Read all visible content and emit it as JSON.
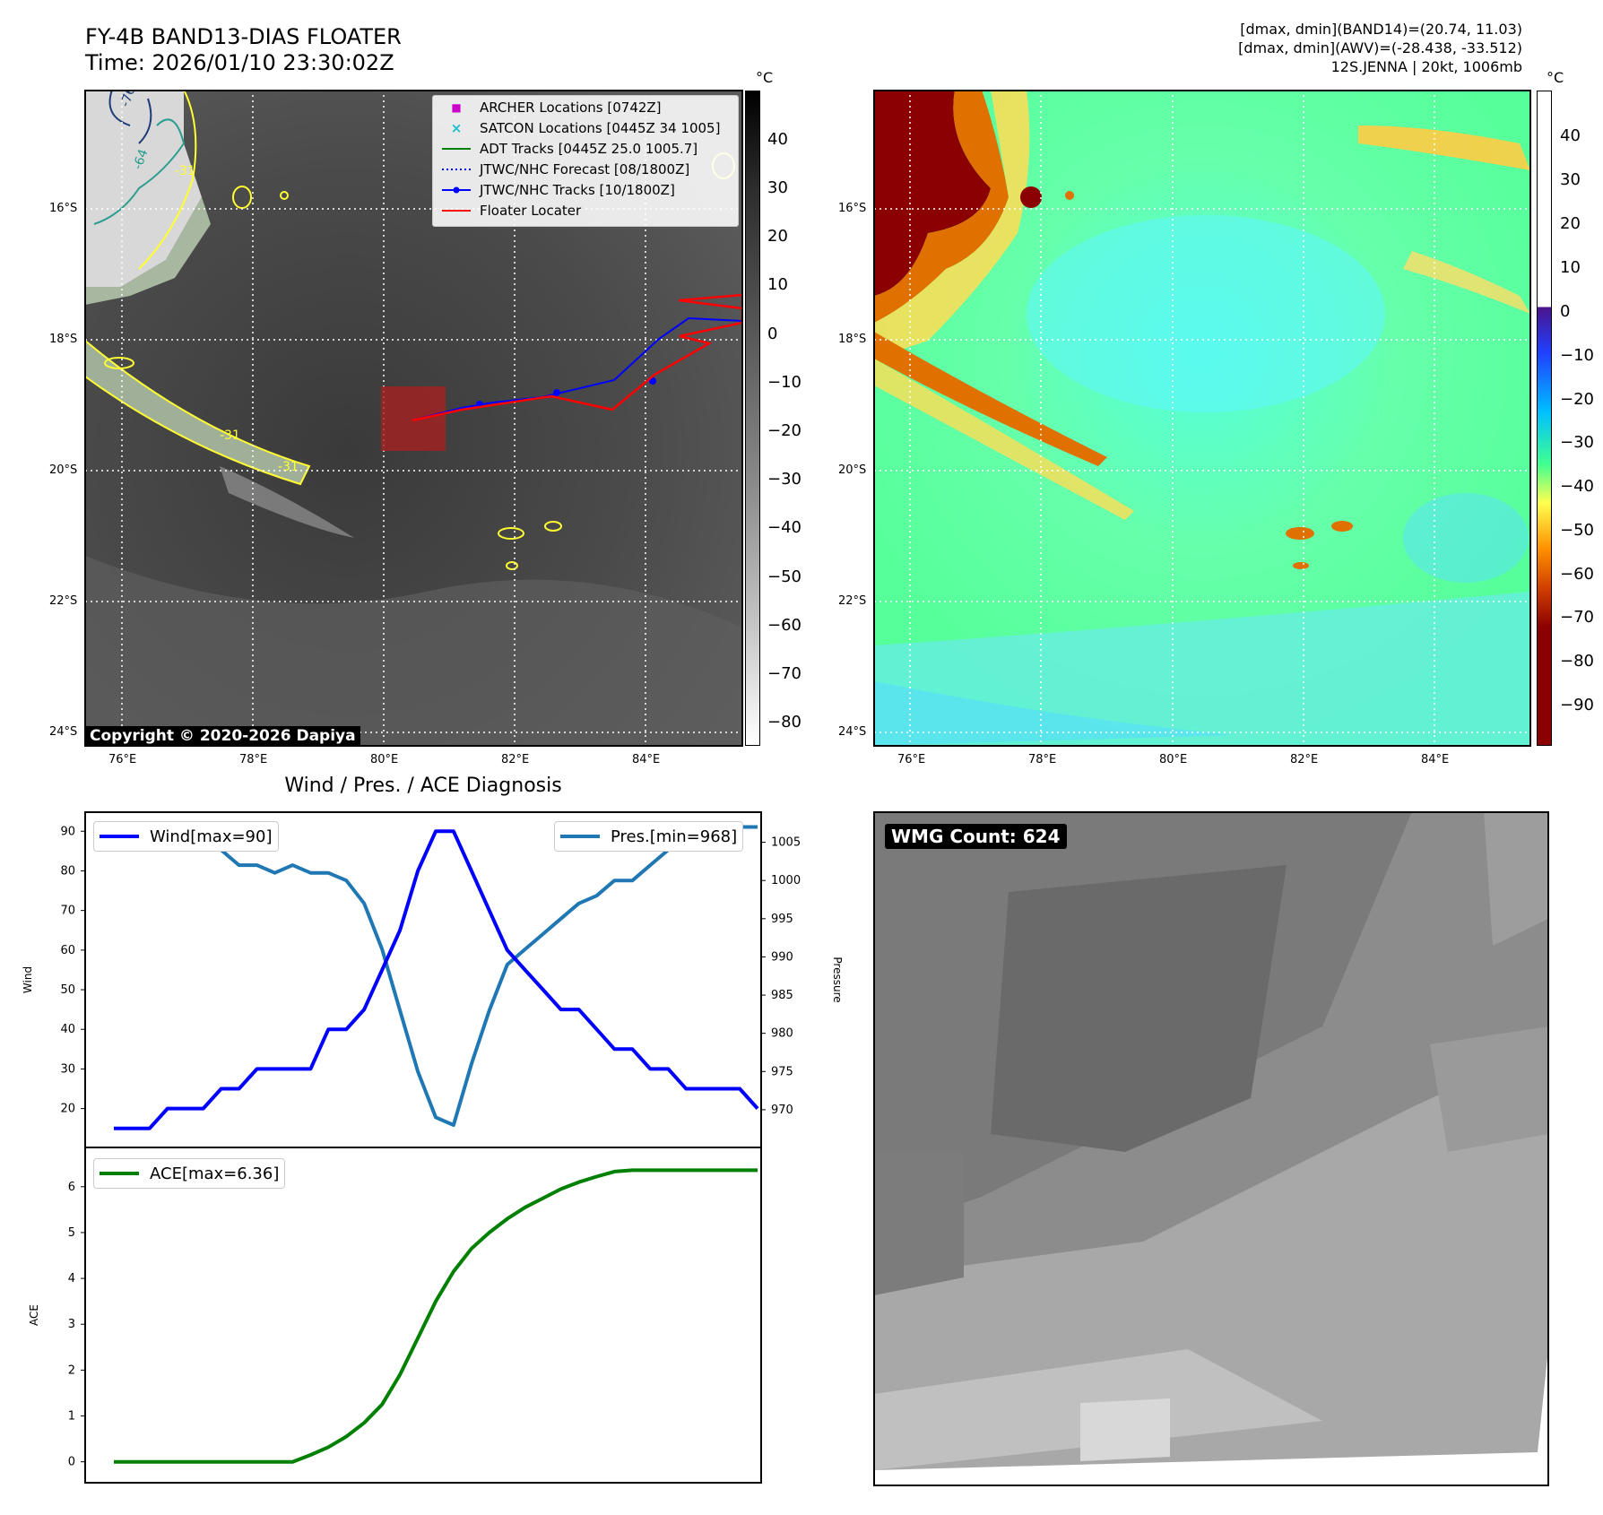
{
  "header": {
    "title_line1": "FY-4B BAND13-DIAS FLOATER",
    "title_line2": "Time: 2026/01/10 23:30:02Z",
    "info_line1": "[dmax, dmin](BAND14)=(20.74, 11.03)",
    "info_line2": "[dmax, dmin](AWV)=(-28.438, -33.512)",
    "info_line3": "12S.JENNA | 20kt, 1006mb"
  },
  "map_axes": {
    "lat_labels": [
      "16°S",
      "18°S",
      "20°S",
      "22°S",
      "24°S"
    ],
    "lon_labels": [
      "76°E",
      "78°E",
      "80°E",
      "82°E",
      "84°E"
    ]
  },
  "left_map": {
    "legend": [
      {
        "label": "ARCHER Locations [0742Z]",
        "symbol": "square",
        "color": "#cc00cc"
      },
      {
        "label": "SATCON Locations [0445Z 34 1005]",
        "symbol": "x",
        "color": "#17becf"
      },
      {
        "label": "ADT Tracks [0445Z 25.0 1005.7]",
        "symbol": "line",
        "color": "#008000"
      },
      {
        "label": "JTWC/NHC Forecast [08/1800Z]",
        "symbol": "dotted",
        "color": "#0000ff"
      },
      {
        "label": "JTWC/NHC Tracks [10/1800Z]",
        "symbol": "line-dot",
        "color": "#0000ff"
      },
      {
        "label": "Floater Locater",
        "symbol": "line",
        "color": "#ff0000"
      }
    ],
    "copyright": "Copyright © 2020-2026 Dapiya",
    "contour_labels": [
      "-31",
      "-76",
      "-64"
    ],
    "colorbar": {
      "unit": "°C",
      "ticks": [
        "40",
        "30",
        "20",
        "10",
        "0",
        "−10",
        "−20",
        "−30",
        "−40",
        "−50",
        "−60",
        "−70",
        "−80"
      ]
    }
  },
  "right_map": {
    "colorbar": {
      "unit": "°C",
      "ticks": [
        "40",
        "30",
        "20",
        "10",
        "0",
        "−10",
        "−20",
        "−30",
        "−40",
        "−50",
        "−60",
        "−70",
        "−80",
        "−90"
      ]
    }
  },
  "diagnosis": {
    "title": "Wind / Pres. / ACE Diagnosis",
    "wind_ylabel": "Wind",
    "pres_ylabel": "Pressure",
    "ace_ylabel": "ACE",
    "wind_legend": "Wind[max=90]",
    "pres_legend": "Pres.[min=968]",
    "ace_legend": "ACE[max=6.36]"
  },
  "wmg": {
    "label": "WMG Count: 624"
  },
  "chart_data": [
    {
      "type": "line",
      "title": "Wind / Pres. / ACE Diagnosis",
      "ylabel": "Wind",
      "ylim": [
        12,
        93
      ],
      "yticks": [
        20,
        30,
        40,
        50,
        60,
        70,
        80,
        90
      ],
      "series": [
        {
          "name": "Wind[max=90]",
          "color": "#0000ff",
          "x": [
            0,
            1,
            2,
            3,
            4,
            5,
            6,
            7,
            8,
            9,
            10,
            11,
            12,
            13,
            14,
            15,
            16,
            17,
            18,
            19,
            20,
            21,
            22,
            23,
            24,
            25,
            26,
            27,
            28,
            29,
            30,
            31,
            32,
            33,
            34,
            35,
            36
          ],
          "values": [
            15,
            15,
            15,
            20,
            20,
            20,
            25,
            25,
            30,
            30,
            30,
            30,
            40,
            40,
            45,
            55,
            65,
            80,
            90,
            90,
            80,
            70,
            60,
            55,
            50,
            45,
            45,
            40,
            35,
            35,
            30,
            30,
            25,
            25,
            25,
            25,
            20
          ]
        }
      ]
    },
    {
      "type": "line",
      "ylabel": "Pressure",
      "ylim": [
        966,
        1008
      ],
      "yticks": [
        970,
        975,
        980,
        985,
        990,
        995,
        1000,
        1005
      ],
      "series": [
        {
          "name": "Pres.[min=968]",
          "color": "#1f77b4",
          "x": [
            0,
            1,
            2,
            3,
            4,
            5,
            6,
            7,
            8,
            9,
            10,
            11,
            12,
            13,
            14,
            15,
            16,
            17,
            18,
            19,
            20,
            21,
            22,
            23,
            24,
            25,
            26,
            27,
            28,
            29,
            30,
            31,
            32,
            33,
            34,
            35,
            36
          ],
          "values": [
            1007,
            1007,
            1007,
            1007,
            1006,
            1005,
            1004,
            1002,
            1002,
            1001,
            1002,
            1001,
            1001,
            1000,
            997,
            991,
            983,
            975,
            969,
            968,
            976,
            983,
            989,
            991,
            993,
            995,
            997,
            998,
            1000,
            1000,
            1002,
            1004,
            1006,
            1007,
            1007,
            1007,
            1007
          ]
        }
      ]
    },
    {
      "type": "line",
      "ylabel": "ACE",
      "ylim": [
        -0.3,
        6.7
      ],
      "yticks": [
        0,
        1,
        2,
        3,
        4,
        5,
        6
      ],
      "series": [
        {
          "name": "ACE[max=6.36]",
          "color": "#008000",
          "x": [
            0,
            1,
            2,
            3,
            4,
            5,
            6,
            7,
            8,
            9,
            10,
            11,
            12,
            13,
            14,
            15,
            16,
            17,
            18,
            19,
            20,
            21,
            22,
            23,
            24,
            25,
            26,
            27,
            28,
            29,
            30,
            31,
            32,
            33,
            34,
            35,
            36
          ],
          "values": [
            0,
            0,
            0,
            0,
            0,
            0,
            0,
            0,
            0,
            0,
            0,
            0.15,
            0.32,
            0.55,
            0.85,
            1.25,
            1.9,
            2.7,
            3.5,
            4.15,
            4.65,
            5.0,
            5.3,
            5.55,
            5.75,
            5.95,
            6.1,
            6.22,
            6.33,
            6.36,
            6.36,
            6.36,
            6.36,
            6.36,
            6.36,
            6.36,
            6.36
          ]
        }
      ]
    }
  ]
}
